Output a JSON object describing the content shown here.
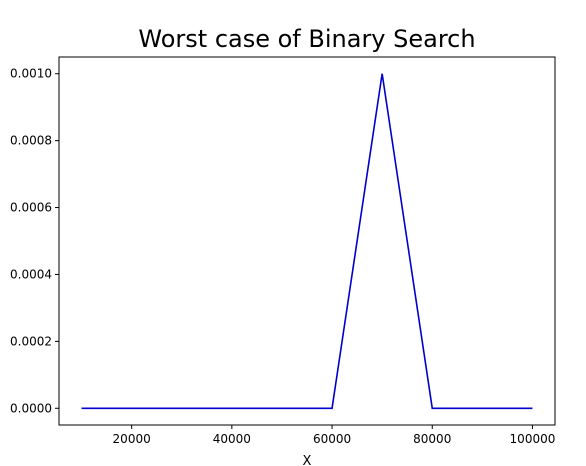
{
  "chart_data": {
    "type": "line",
    "title": "Worst case of Binary Search",
    "xlabel": "X",
    "ylabel": "",
    "xlim": [
      5500,
      104500
    ],
    "ylim": [
      -5e-05,
      0.00105
    ],
    "xticks": [
      20000,
      40000,
      60000,
      80000,
      100000
    ],
    "xtick_labels": [
      "20000",
      "40000",
      "60000",
      "80000",
      "100000"
    ],
    "yticks": [
      0.0,
      0.0002,
      0.0004,
      0.0006,
      0.0008,
      0.001
    ],
    "ytick_labels": [
      "0.0000",
      "0.0002",
      "0.0004",
      "0.0006",
      "0.0008",
      "0.0010"
    ],
    "grid": false,
    "series": [
      {
        "color": "#0000cc",
        "x": [
          10000,
          20000,
          30000,
          40000,
          50000,
          60000,
          70000,
          80000,
          90000,
          100000
        ],
        "y": [
          0,
          0,
          0,
          0,
          0,
          0,
          0.001,
          0,
          0,
          0
        ]
      }
    ]
  }
}
